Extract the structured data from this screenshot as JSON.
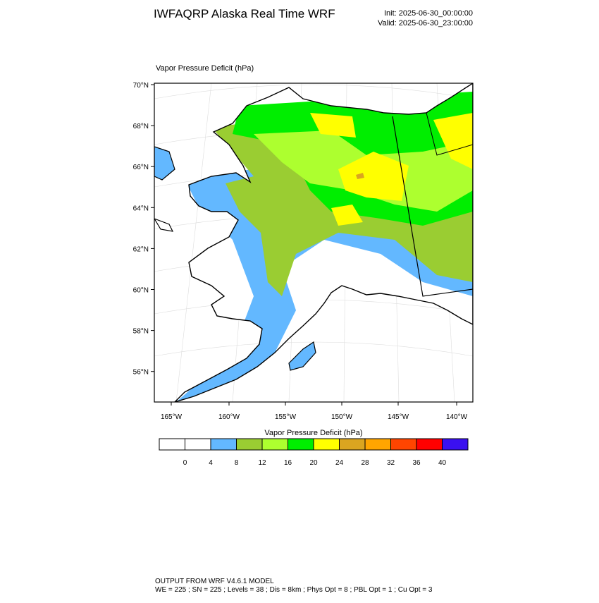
{
  "header": {
    "title": "IWFAQRP Alaska Real Time WRF",
    "init": "Init: 2025-06-30_00:00:00",
    "valid": "Valid: 2025-06-30_23:00:00"
  },
  "map": {
    "field": "Vapor Pressure Deficit   (hPa)",
    "lat_labels": [
      "70°N",
      "68°N",
      "66°N",
      "64°N",
      "62°N",
      "60°N",
      "58°N",
      "56°N"
    ],
    "lon_labels": [
      "165°W",
      "160°W",
      "155°W",
      "150°W",
      "145°W",
      "140°W"
    ]
  },
  "colorbar": {
    "title": "Vapor Pressure Deficit  (hPa)",
    "levels": [
      0,
      4,
      8,
      12,
      16,
      20,
      24,
      28,
      32,
      36,
      40
    ],
    "colors": [
      "#ffffff",
      "#ffffff",
      "#63b8ff",
      "#9acd32",
      "#adff2f",
      "#00ee00",
      "#ffff00",
      "#daa520",
      "#ffa500",
      "#ff4500",
      "#ff0000",
      "#3a10f0"
    ]
  },
  "footer": {
    "line1": "OUTPUT FROM WRF V4.6.1 MODEL",
    "line2": "WE = 225 ; SN = 225 ; Levels = 38 ; Dis = 8km ; Phys Opt = 8 ; PBL Opt = 1 ; Cu Opt = 3"
  }
}
